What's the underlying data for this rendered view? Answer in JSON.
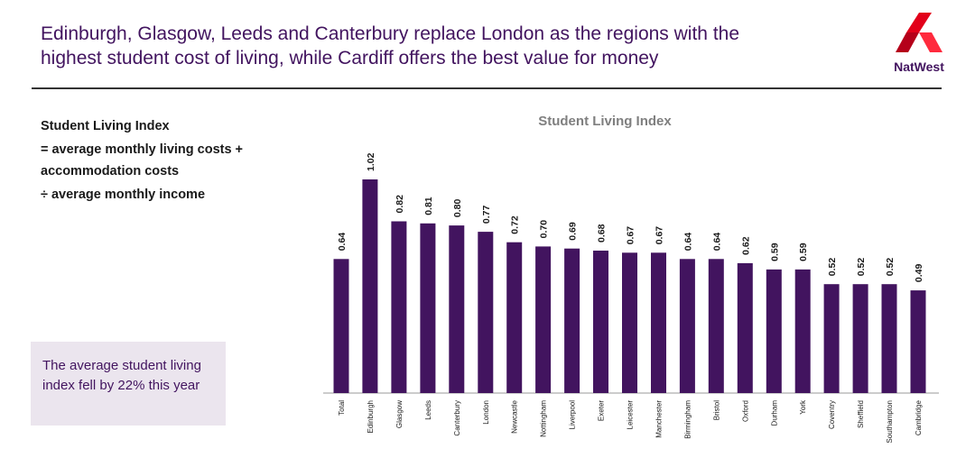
{
  "header": {
    "headline_line1": "Edinburgh, Glasgow, Leeds and Canterbury replace London as the regions with the",
    "headline_line2": "highest student cost of living, while Cardiff offers the best value for money",
    "logo_text": "NatWest"
  },
  "definition": {
    "title": "Student Living Index",
    "line1": "= average monthly living costs +",
    "line2": "accommodation costs",
    "line3": "÷ average monthly income"
  },
  "callout": {
    "text": "The average student living index fell by 22% this year"
  },
  "colors": {
    "brand": "#42145f",
    "bar": "#42145f",
    "logo_red": "#e2001a",
    "callout_bg": "#ebe5ee"
  },
  "chart_data": {
    "type": "bar",
    "title": "Student Living Index",
    "xlabel": "",
    "ylabel": "",
    "ylim": [
      0,
      1.02
    ],
    "grid": false,
    "categories": [
      "Total",
      "Edinburgh",
      "Glasgow",
      "Leeds",
      "Canterbury",
      "London",
      "Newcastle",
      "Nottingham",
      "Liverpool",
      "Exeter",
      "Leicester",
      "Manchester",
      "Birmingham",
      "Bristol",
      "Oxford",
      "Durham",
      "York",
      "Coventry",
      "Sheffield",
      "Southampton",
      "Cambridge"
    ],
    "values": [
      0.64,
      1.02,
      0.82,
      0.81,
      0.8,
      0.77,
      0.72,
      0.7,
      0.69,
      0.68,
      0.67,
      0.67,
      0.64,
      0.64,
      0.62,
      0.59,
      0.59,
      0.52,
      0.52,
      0.52,
      0.49
    ],
    "labels": [
      "0.64",
      "1.02",
      "0.82",
      "0.81",
      "0.80",
      "0.77",
      "0.72",
      "0.70",
      "0.69",
      "0.68",
      "0.67",
      "0.67",
      "0.64",
      "0.64",
      "0.62",
      "0.59",
      "0.59",
      "0.52",
      "0.52",
      "0.52",
      "0.49"
    ]
  }
}
